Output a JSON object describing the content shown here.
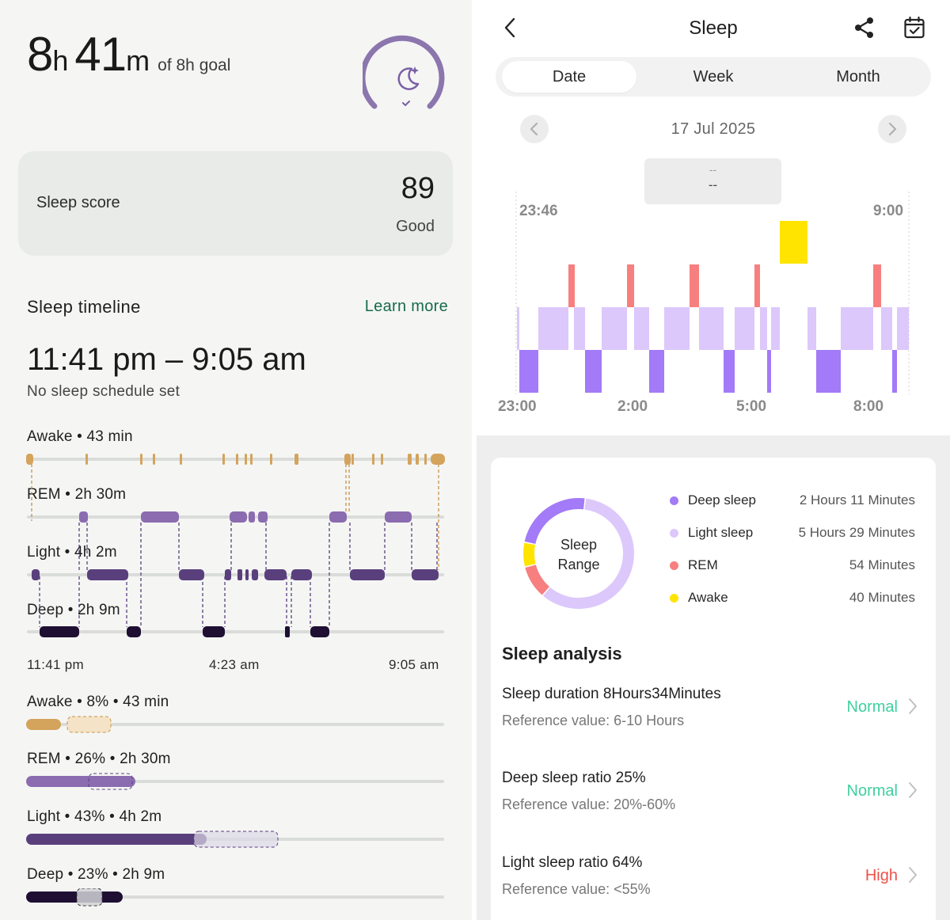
{
  "left": {
    "total_hours": "8",
    "total_hours_unit": "h",
    "total_minutes": "41",
    "total_minutes_unit": "m",
    "goal_text": "of 8h goal",
    "goal_progress": 1.0,
    "score_card": {
      "label": "Sleep score",
      "value": "89",
      "rating": "Good"
    },
    "timeline": {
      "title": "Sleep timeline",
      "learn_more": "Learn more",
      "range": "11:41 pm – 9:05 am",
      "schedule_note": "No sleep schedule set",
      "stages": [
        {
          "label": "Awake • 43 min"
        },
        {
          "label": "REM • 2h 30m"
        },
        {
          "label": "Light • 4h 2m"
        },
        {
          "label": "Deep • 2h 9m"
        }
      ],
      "time_ticks": [
        "11:41 pm",
        "4:23 am",
        "9:05 am"
      ]
    },
    "durations": [
      {
        "label": "Awake • 8% • 43 min",
        "percent": 8,
        "color": "#d4a35c"
      },
      {
        "label": "REM • 26% • 2h 30m",
        "percent": 26,
        "color": "#8b6cb0"
      },
      {
        "label": "Light • 43% • 4h 2m",
        "percent": 43,
        "color": "#5a3f7d"
      },
      {
        "label": "Deep • 23% • 2h 9m",
        "percent": 23,
        "color": "#1f0f33"
      }
    ]
  },
  "right": {
    "header": {
      "title": "Sleep",
      "back_icon": "chevron-left-icon",
      "share_icon": "share-icon",
      "calendar_icon": "calendar-check-icon"
    },
    "tabs": [
      {
        "label": "Date",
        "active": true
      },
      {
        "label": "Week",
        "active": false
      },
      {
        "label": "Month",
        "active": false
      }
    ],
    "date": "17 Jul 2025",
    "tooltip": {
      "line1": "--",
      "line2": "--"
    },
    "chart": {
      "start_time": "23:46",
      "end_time": "9:00",
      "x_ticks": [
        "23:00",
        "2:00",
        "5:00",
        "8:00"
      ],
      "colors": {
        "awake": "#ffe400",
        "rem": "#f77f7f",
        "light": "#dcc8fb",
        "deep": "#a37af7"
      }
    },
    "donut": {
      "title": "Sleep Range",
      "legend": [
        {
          "name": "Deep sleep",
          "value": "2 Hours 11 Minutes",
          "color": "#a37af7",
          "minutes": 131
        },
        {
          "name": "Light sleep",
          "value": "5 Hours 29 Minutes",
          "color": "#dcc8fb",
          "minutes": 329
        },
        {
          "name": "REM",
          "value": "54 Minutes",
          "color": "#f77f7f",
          "minutes": 54
        },
        {
          "name": "Awake",
          "value": "40 Minutes",
          "color": "#ffe400",
          "minutes": 40
        }
      ]
    },
    "analysis": {
      "title": "Sleep analysis",
      "metrics": [
        {
          "label": "Sleep duration  8Hours34Minutes",
          "reference": "Reference value:  6-10 Hours",
          "status": "Normal",
          "status_color": "#3fcf9f"
        },
        {
          "label": "Deep sleep ratio  25%",
          "reference": "Reference value:  20%-60%",
          "status": "Normal",
          "status_color": "#3fcf9f"
        },
        {
          "label": "Light sleep ratio  64%",
          "reference": "Reference value:  <55%",
          "status": "High",
          "status_color": "#f0504a"
        }
      ]
    }
  }
}
